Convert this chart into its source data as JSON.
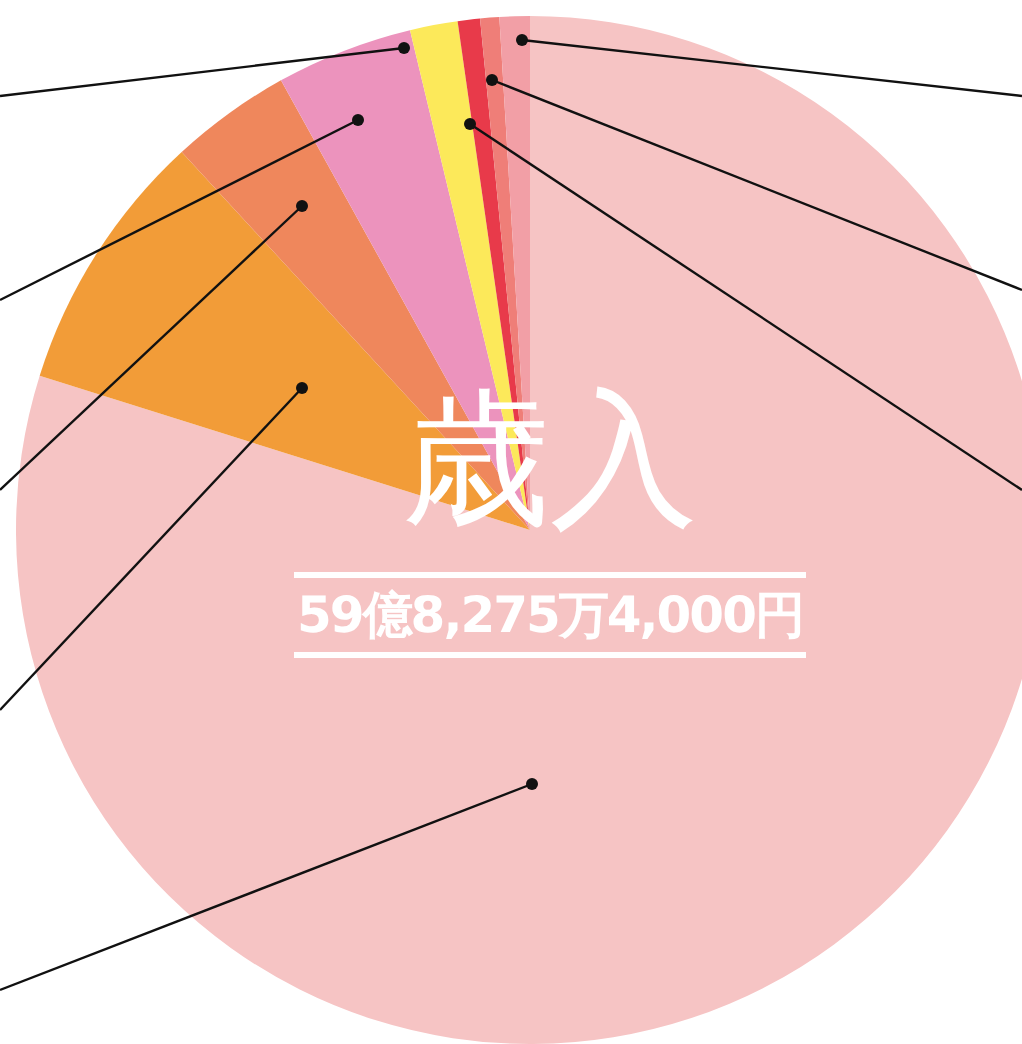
{
  "chart_data": {
    "type": "pie",
    "title": "歳入",
    "subtitle": "59億8,275万4,000円",
    "categories": [
      null,
      null,
      null,
      null,
      null,
      null,
      null,
      null
    ],
    "values": [
      79.85,
      8.3,
      3.8,
      4.3,
      1.5,
      0.7,
      0.6,
      0.95
    ],
    "colors": [
      "#f6c4c4",
      "#f29c38",
      "#ef875c",
      "#ec93bd",
      "#fce95a",
      "#e83a4a",
      "#ef7e78",
      "#f29fa6"
    ],
    "legend": false
  }
}
